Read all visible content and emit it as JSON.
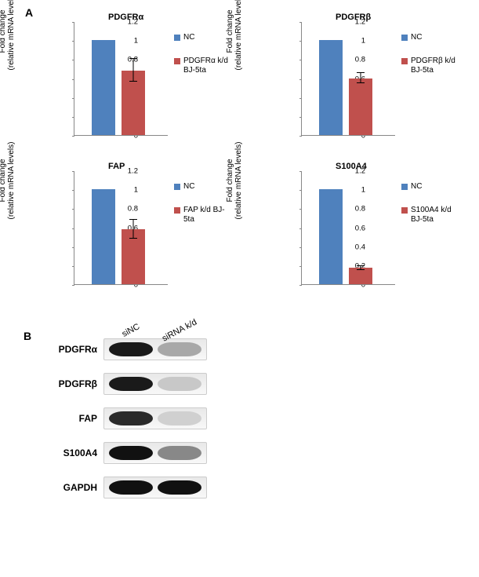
{
  "panel_a_label": "A",
  "panel_b_label": "B",
  "y_axis_label": "Fold change\n(relative mRNA levels)",
  "y_ticks": [
    0,
    0.2,
    0.4,
    0.6,
    0.8,
    1,
    1.2
  ],
  "y_max": 1.2,
  "colors": {
    "nc_bar": "#4f81bd",
    "kd_bar": "#c0504d",
    "axis": "#888888",
    "error_bar": "#000000",
    "background": "#ffffff",
    "blot_dark": "#1a1a1a",
    "blot_medium": "#5a5a5a",
    "blot_light": "#b5b5b5",
    "blot_faint": "#cfcfcf"
  },
  "charts": [
    {
      "title": "PDGFRα",
      "nc_value": 1.0,
      "kd_value": 0.68,
      "kd_err": 0.12,
      "legend_nc": "NC",
      "legend_kd": "PDGFRα k/d BJ-5ta"
    },
    {
      "title": "PDGFRβ",
      "nc_value": 1.0,
      "kd_value": 0.6,
      "kd_err": 0.05,
      "legend_nc": "NC",
      "legend_kd": "PDGFRβ k/d BJ-5ta"
    },
    {
      "title": "FAP",
      "nc_value": 1.0,
      "kd_value": 0.58,
      "kd_err": 0.1,
      "legend_nc": "NC",
      "legend_kd": "FAP k/d BJ-5ta"
    },
    {
      "title": "S100A4",
      "nc_value": 1.0,
      "kd_value": 0.17,
      "kd_err": 0.02,
      "legend_nc": "NC",
      "legend_kd": "S100A4 k/d BJ-5ta"
    }
  ],
  "western": {
    "header_nc": "siNC",
    "header_kd": "siRNA k/d",
    "rows": [
      {
        "label": "PDGFRα",
        "nc_intensity": "#1a1a1a",
        "kd_intensity": "#a8a8a8"
      },
      {
        "label": "PDGFRβ",
        "nc_intensity": "#1a1a1a",
        "kd_intensity": "#c8c8c8"
      },
      {
        "label": "FAP",
        "nc_intensity": "#2a2a2a",
        "kd_intensity": "#d0d0d0"
      },
      {
        "label": "S100A4",
        "nc_intensity": "#111111",
        "kd_intensity": "#888888"
      },
      {
        "label": "GAPDH",
        "nc_intensity": "#111111",
        "kd_intensity": "#111111"
      }
    ]
  }
}
